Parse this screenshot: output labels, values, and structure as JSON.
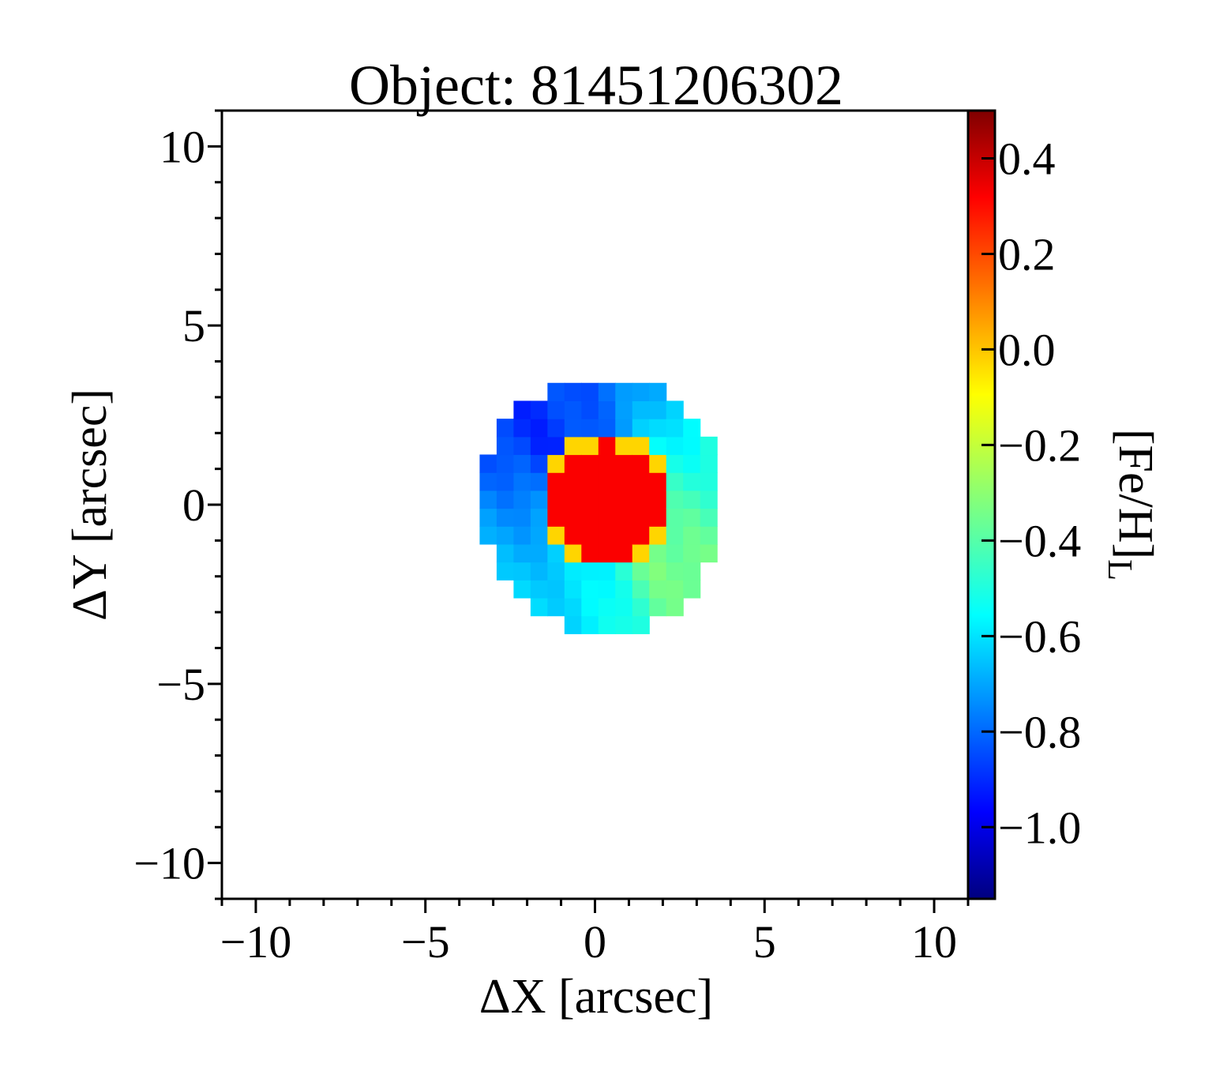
{
  "chart_data": {
    "type": "heatmap",
    "title": "Object: 81451206302",
    "xlabel": "ΔX [arcsec]",
    "ylabel": "ΔY [arcsec]",
    "xlim": [
      -11,
      11
    ],
    "ylim": [
      -11,
      11
    ],
    "xticks": [
      {
        "value": -10,
        "label": "−10"
      },
      {
        "value": -5,
        "label": "−5"
      },
      {
        "value": 0,
        "label": "0"
      },
      {
        "value": 5,
        "label": "5"
      },
      {
        "value": 10,
        "label": "10"
      }
    ],
    "yticks": [
      {
        "value": 10,
        "label": "10"
      },
      {
        "value": 5,
        "label": "5"
      },
      {
        "value": 0,
        "label": "0"
      },
      {
        "value": -5,
        "label": "−5"
      },
      {
        "value": -10,
        "label": "−10"
      }
    ],
    "colorbar": {
      "label_main": "[Fe/H]",
      "label_sub": "L",
      "colormap": "jet",
      "vmin": -1.15,
      "vmax": 0.5,
      "ticks": [
        {
          "value": 0.4,
          "label": "0.4"
        },
        {
          "value": 0.2,
          "label": "0.2"
        },
        {
          "value": 0.0,
          "label": "0.0"
        },
        {
          "value": -0.2,
          "label": "−0.2"
        },
        {
          "value": -0.4,
          "label": "−0.4"
        },
        {
          "value": -0.6,
          "label": "−0.6"
        },
        {
          "value": -0.8,
          "label": "−0.8"
        },
        {
          "value": -1.0,
          "label": "−1.0"
        }
      ]
    },
    "map": {
      "center": [
        0.2,
        0.0
      ],
      "radius": 3.6,
      "pixel_size": 0.5,
      "core_center": [
        0.35,
        0.1
      ],
      "core_radius": 1.6,
      "core_value": 0.3,
      "ring_value": -0.05,
      "regions": [
        {
          "name": "northwest",
          "value": -0.88
        },
        {
          "name": "north",
          "value": -0.78
        },
        {
          "name": "northeast",
          "value": -0.55
        },
        {
          "name": "west",
          "value": -0.72
        },
        {
          "name": "east",
          "value": -0.42
        },
        {
          "name": "southwest",
          "value": -0.62
        },
        {
          "name": "south",
          "value": -0.55
        },
        {
          "name": "southeast",
          "value": -0.32
        }
      ]
    }
  }
}
